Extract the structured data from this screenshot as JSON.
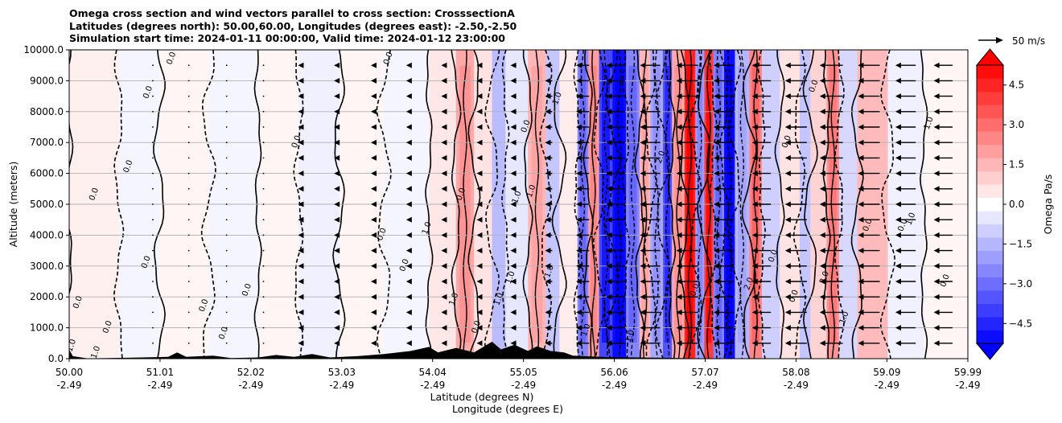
{
  "chart_data": {
    "type": "heatmap",
    "title_lines": [
      "Omega cross section and wind vectors parallel to cross section: CrosssectionA",
      "Latitudes (degrees north): 50.00,60.00, Longitudes (degrees east): -2.50,-2.50",
      "Simulation start time: 2024-01-11 00:00:00, Valid time: 2024-01-12 23:00:00"
    ],
    "ylabel": "Altitude (meters)",
    "xlabel_lines": [
      "Latitude (degrees N)",
      "Longitude (degrees E)"
    ],
    "ylim": [
      0,
      10000
    ],
    "y_ticks": [
      {
        "value": 0,
        "label": "0.0"
      },
      {
        "value": 1000,
        "label": "1000.0"
      },
      {
        "value": 2000,
        "label": "2000.0"
      },
      {
        "value": 3000,
        "label": "3000.0"
      },
      {
        "value": 4000,
        "label": "4000.0"
      },
      {
        "value": 5000,
        "label": "5000.0"
      },
      {
        "value": 6000,
        "label": "6000.0"
      },
      {
        "value": 7000,
        "label": "7000.0"
      },
      {
        "value": 8000,
        "label": "8000.0"
      },
      {
        "value": 9000,
        "label": "9000.0"
      },
      {
        "value": 10000,
        "label": "10000.0"
      }
    ],
    "xlim": [
      50.0,
      59.99
    ],
    "x_ticks": [
      {
        "value": 50.0,
        "lat": "50.00",
        "lon": "-2.49"
      },
      {
        "value": 51.01,
        "lat": "51.01",
        "lon": "-2.49"
      },
      {
        "value": 52.02,
        "lat": "52.02",
        "lon": "-2.49"
      },
      {
        "value": 53.03,
        "lat": "53.03",
        "lon": "-2.49"
      },
      {
        "value": 54.04,
        "lat": "54.04",
        "lon": "-2.49"
      },
      {
        "value": 55.05,
        "lat": "55.05",
        "lon": "-2.49"
      },
      {
        "value": 56.06,
        "lat": "56.06",
        "lon": "-2.49"
      },
      {
        "value": 57.07,
        "lat": "57.07",
        "lon": "-2.49"
      },
      {
        "value": 58.08,
        "lat": "58.08",
        "lon": "-2.49"
      },
      {
        "value": 59.09,
        "lat": "59.09",
        "lon": "-2.49"
      },
      {
        "value": 59.99,
        "lat": "59.99",
        "lon": "-2.49"
      }
    ],
    "grid": "horizontal",
    "colorbar": {
      "label": "Omega Pa/s",
      "range": [
        -5.25,
        5.25
      ],
      "extend": "both",
      "ticks": [
        {
          "value": 4.5,
          "label": "4.5"
        },
        {
          "value": 3.0,
          "label": "3.0"
        },
        {
          "value": 1.5,
          "label": "1.5"
        },
        {
          "value": 0.0,
          "label": "0.0"
        },
        {
          "value": -1.5,
          "label": "−1.5"
        },
        {
          "value": -3.0,
          "label": "−3.0"
        },
        {
          "value": -4.5,
          "label": "−4.5"
        }
      ]
    },
    "vector_key": {
      "label": "50 m/s",
      "speed": 50
    },
    "omega_columns": [
      {
        "lat": 50.0,
        "width": 0.55,
        "value": 0.3
      },
      {
        "lat": 50.55,
        "width": 0.45,
        "value": -0.2
      },
      {
        "lat": 51.0,
        "width": 0.55,
        "value": 0.2
      },
      {
        "lat": 51.55,
        "width": 0.55,
        "value": -0.2
      },
      {
        "lat": 52.1,
        "width": 0.45,
        "value": 0.2
      },
      {
        "lat": 52.55,
        "width": 0.45,
        "value": -0.3
      },
      {
        "lat": 53.0,
        "width": 0.5,
        "value": 0.2
      },
      {
        "lat": 53.5,
        "width": 0.5,
        "value": -0.2
      },
      {
        "lat": 54.0,
        "width": 0.3,
        "value": 0.5
      },
      {
        "lat": 54.3,
        "width": 0.2,
        "value": 1.8
      },
      {
        "lat": 54.5,
        "width": 0.2,
        "value": 0.6
      },
      {
        "lat": 54.7,
        "width": 0.15,
        "value": -1.4
      },
      {
        "lat": 54.85,
        "width": 0.25,
        "value": -0.5
      },
      {
        "lat": 55.1,
        "width": 0.2,
        "value": 1.5
      },
      {
        "lat": 55.3,
        "width": 0.15,
        "value": -1.2
      },
      {
        "lat": 55.45,
        "width": 0.2,
        "value": 0.4
      },
      {
        "lat": 55.65,
        "width": 0.12,
        "value": -2.5
      },
      {
        "lat": 55.77,
        "width": 0.12,
        "value": 2.0
      },
      {
        "lat": 55.89,
        "width": 0.15,
        "value": -3.8
      },
      {
        "lat": 56.04,
        "width": 0.15,
        "value": -5.0
      },
      {
        "lat": 56.19,
        "width": 0.15,
        "value": -2.5
      },
      {
        "lat": 56.34,
        "width": 0.12,
        "value": 1.5
      },
      {
        "lat": 56.46,
        "width": 0.14,
        "value": -1.8
      },
      {
        "lat": 56.6,
        "width": 0.1,
        "value": -3.5
      },
      {
        "lat": 56.7,
        "width": 0.14,
        "value": 1.8
      },
      {
        "lat": 56.84,
        "width": 0.12,
        "value": 4.5
      },
      {
        "lat": 56.96,
        "width": 0.1,
        "value": -2.0
      },
      {
        "lat": 57.06,
        "width": 0.1,
        "value": 4.0
      },
      {
        "lat": 57.16,
        "width": 0.12,
        "value": -2.5
      },
      {
        "lat": 57.28,
        "width": 0.12,
        "value": -5.0
      },
      {
        "lat": 57.4,
        "width": 0.16,
        "value": -1.5
      },
      {
        "lat": 57.56,
        "width": 0.14,
        "value": 2.5
      },
      {
        "lat": 57.7,
        "width": 0.2,
        "value": -1.0
      },
      {
        "lat": 57.9,
        "width": 0.22,
        "value": 0.6
      },
      {
        "lat": 58.12,
        "width": 0.12,
        "value": -1.2
      },
      {
        "lat": 58.24,
        "width": 0.18,
        "value": 0.9
      },
      {
        "lat": 58.42,
        "width": 0.14,
        "value": 2.2
      },
      {
        "lat": 58.56,
        "width": 0.2,
        "value": -0.8
      },
      {
        "lat": 58.76,
        "width": 0.34,
        "value": 1.4
      },
      {
        "lat": 59.1,
        "width": 0.4,
        "value": -0.3
      },
      {
        "lat": 59.5,
        "width": 0.49,
        "value": 0.2
      }
    ],
    "wind_vectors": [
      {
        "lat": 50.93,
        "u": 0
      },
      {
        "lat": 51.33,
        "u": 0
      },
      {
        "lat": 51.75,
        "u": 0
      },
      {
        "lat": 52.16,
        "u": 0
      },
      {
        "lat": 52.56,
        "u": -2
      },
      {
        "lat": 52.96,
        "u": -2
      },
      {
        "lat": 53.37,
        "u": -2
      },
      {
        "lat": 53.77,
        "u": -3
      },
      {
        "lat": 54.16,
        "u": -3
      },
      {
        "lat": 54.57,
        "u": -5
      },
      {
        "lat": 54.97,
        "u": -8
      },
      {
        "lat": 55.37,
        "u": -10
      },
      {
        "lat": 55.78,
        "u": -18
      },
      {
        "lat": 56.18,
        "u": -26
      },
      {
        "lat": 56.57,
        "u": -28
      },
      {
        "lat": 56.99,
        "u": -30
      },
      {
        "lat": 57.39,
        "u": -28
      },
      {
        "lat": 57.8,
        "u": -26
      },
      {
        "lat": 58.2,
        "u": -30
      },
      {
        "lat": 58.6,
        "u": -32
      },
      {
        "lat": 59.01,
        "u": -30
      },
      {
        "lat": 59.41,
        "u": -28
      },
      {
        "lat": 59.82,
        "u": -26
      }
    ],
    "wind_vector_altitudes": [
      500,
      1000,
      1500,
      2000,
      2500,
      3000,
      3500,
      4000,
      4500,
      5000,
      5500,
      6000,
      6500,
      7000,
      7500,
      8000,
      8500,
      9000,
      9500
    ],
    "contour_labels": [
      {
        "lat": 50.05,
        "alt": 400,
        "text": "1.0"
      },
      {
        "lat": 50.32,
        "alt": 180,
        "text": "1.0"
      },
      {
        "lat": 50.12,
        "alt": 1800,
        "text": "0.0"
      },
      {
        "lat": 50.45,
        "alt": 1000,
        "text": "0.0"
      },
      {
        "lat": 50.3,
        "alt": 5300,
        "text": "0.0"
      },
      {
        "lat": 50.68,
        "alt": 6200,
        "text": "0.0"
      },
      {
        "lat": 50.9,
        "alt": 8600,
        "text": "0.0"
      },
      {
        "lat": 51.16,
        "alt": 9700,
        "text": "0.0"
      },
      {
        "lat": 50.88,
        "alt": 3100,
        "text": "0.0"
      },
      {
        "lat": 51.52,
        "alt": 1700,
        "text": "0.0"
      },
      {
        "lat": 51.74,
        "alt": 800,
        "text": "0.0"
      },
      {
        "lat": 52.0,
        "alt": 2200,
        "text": "0.0"
      },
      {
        "lat": 52.55,
        "alt": 7000,
        "text": "0.0"
      },
      {
        "lat": 53.57,
        "alt": 9700,
        "text": "0.0"
      },
      {
        "lat": 53.5,
        "alt": 4000,
        "text": "0.0"
      },
      {
        "lat": 53.75,
        "alt": 3000,
        "text": "0.0"
      },
      {
        "lat": 54.0,
        "alt": 4200,
        "text": "1.0"
      },
      {
        "lat": 54.3,
        "alt": 1900,
        "text": "1.0"
      },
      {
        "lat": 54.38,
        "alt": 5300,
        "text": "0.0"
      },
      {
        "lat": 54.55,
        "alt": 1000,
        "text": "0.0"
      },
      {
        "lat": 54.8,
        "alt": 1900,
        "text": "1.0"
      },
      {
        "lat": 54.93,
        "alt": 2600,
        "text": "1.0"
      },
      {
        "lat": 55.0,
        "alt": 5200,
        "text": "1.0"
      },
      {
        "lat": 55.16,
        "alt": 5400,
        "text": "1.0"
      },
      {
        "lat": 55.1,
        "alt": 7500,
        "text": "0.0"
      },
      {
        "lat": 55.36,
        "alt": 2800,
        "text": "1.0"
      },
      {
        "lat": 55.45,
        "alt": 8400,
        "text": "1.0"
      },
      {
        "lat": 55.77,
        "alt": 900,
        "text": "1.0"
      },
      {
        "lat": 56.26,
        "alt": 700,
        "text": "1.0"
      },
      {
        "lat": 56.6,
        "alt": 6500,
        "text": "2.0"
      },
      {
        "lat": 56.98,
        "alt": 2200,
        "text": "0.0"
      },
      {
        "lat": 57.58,
        "alt": 2400,
        "text": "2.0"
      },
      {
        "lat": 57.85,
        "alt": 3300,
        "text": "0.0"
      },
      {
        "lat": 58.0,
        "alt": 7000,
        "text": "0.0"
      },
      {
        "lat": 58.08,
        "alt": 2000,
        "text": "0.0"
      },
      {
        "lat": 58.3,
        "alt": 8800,
        "text": "0.0"
      },
      {
        "lat": 58.42,
        "alt": 2600,
        "text": "2.0"
      },
      {
        "lat": 58.64,
        "alt": 1300,
        "text": "1.0"
      },
      {
        "lat": 58.9,
        "alt": 4300,
        "text": "0.0"
      },
      {
        "lat": 59.29,
        "alt": 4300,
        "text": "0.0"
      },
      {
        "lat": 59.38,
        "alt": 4500,
        "text": "1.0"
      },
      {
        "lat": 59.76,
        "alt": 2500,
        "text": "0.0"
      },
      {
        "lat": 59.58,
        "alt": 7600,
        "text": "1.0"
      }
    ],
    "terrain": [
      {
        "lat": 50.0,
        "alt": 300
      },
      {
        "lat": 50.04,
        "alt": 80
      },
      {
        "lat": 50.2,
        "alt": 10
      },
      {
        "lat": 50.7,
        "alt": 30
      },
      {
        "lat": 51.1,
        "alt": 60
      },
      {
        "lat": 51.2,
        "alt": 200
      },
      {
        "lat": 51.3,
        "alt": 60
      },
      {
        "lat": 51.6,
        "alt": 100
      },
      {
        "lat": 51.8,
        "alt": 20
      },
      {
        "lat": 52.1,
        "alt": 40
      },
      {
        "lat": 52.3,
        "alt": 120
      },
      {
        "lat": 52.5,
        "alt": 60
      },
      {
        "lat": 52.7,
        "alt": 150
      },
      {
        "lat": 52.9,
        "alt": 40
      },
      {
        "lat": 53.2,
        "alt": 80
      },
      {
        "lat": 53.5,
        "alt": 150
      },
      {
        "lat": 53.8,
        "alt": 250
      },
      {
        "lat": 54.0,
        "alt": 380
      },
      {
        "lat": 54.1,
        "alt": 200
      },
      {
        "lat": 54.3,
        "alt": 350
      },
      {
        "lat": 54.5,
        "alt": 200
      },
      {
        "lat": 54.7,
        "alt": 550
      },
      {
        "lat": 54.8,
        "alt": 300
      },
      {
        "lat": 54.95,
        "alt": 450
      },
      {
        "lat": 55.1,
        "alt": 250
      },
      {
        "lat": 55.2,
        "alt": 400
      },
      {
        "lat": 55.35,
        "alt": 250
      },
      {
        "lat": 55.5,
        "alt": 200
      },
      {
        "lat": 55.6,
        "alt": 100
      },
      {
        "lat": 56.0,
        "alt": 50
      },
      {
        "lat": 56.5,
        "alt": 30
      },
      {
        "lat": 57.0,
        "alt": 10
      },
      {
        "lat": 59.99,
        "alt": 0
      }
    ]
  }
}
